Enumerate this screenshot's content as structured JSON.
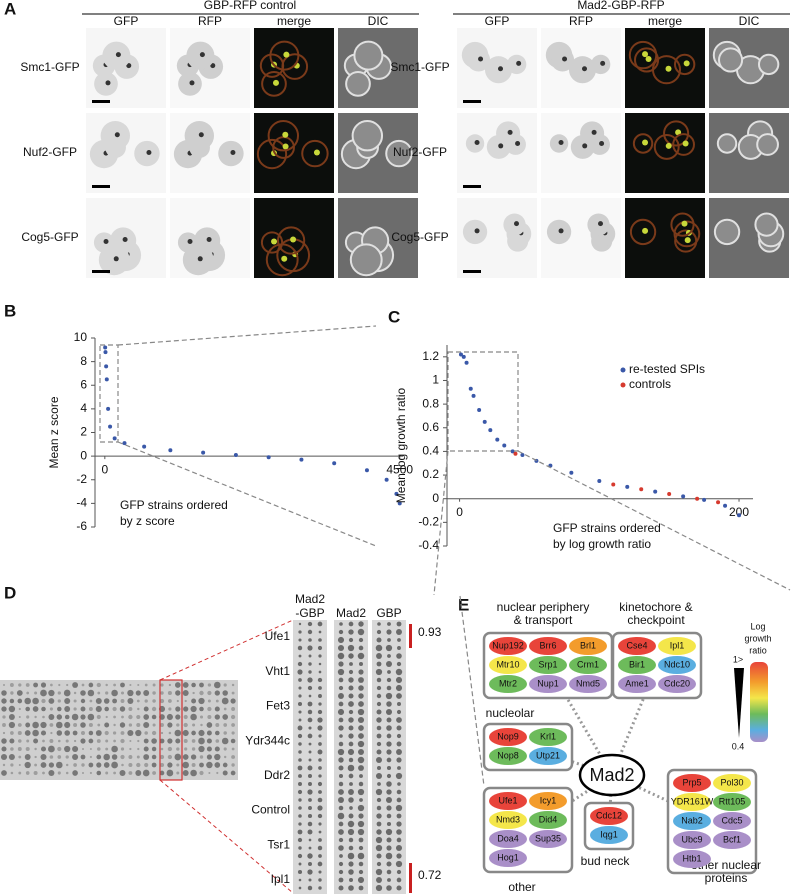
{
  "panel_a": {
    "label": "A",
    "blocks": [
      {
        "title": "GBP-RFP control",
        "columns": [
          "GFP",
          "RFP",
          "merge",
          "DIC"
        ]
      },
      {
        "title": "Mad2-GBP-RFP",
        "columns": [
          "GFP",
          "RFP",
          "merge",
          "DIC"
        ]
      }
    ],
    "rows": [
      "Smc1-GFP",
      "Nuf2-GFP",
      "Cog5-GFP"
    ]
  },
  "chart_data": [
    {
      "type": "scatter",
      "label": "B",
      "ylabel": "Mean z score",
      "xlabel": [
        "GFP strains ordered",
        "by z score"
      ],
      "x": [
        5,
        10,
        20,
        30,
        50,
        80,
        150,
        300,
        600,
        1000,
        1500,
        2000,
        2500,
        3000,
        3500,
        4000,
        4300,
        4450,
        4500
      ],
      "values": [
        9.2,
        8.8,
        7.6,
        6.5,
        4,
        2.5,
        1.5,
        1.1,
        0.8,
        0.5,
        0.3,
        0.1,
        -0.1,
        -0.3,
        -0.6,
        -1.2,
        -2,
        -3.2,
        -4
      ],
      "color": "#3a58a8",
      "xlim": [
        -150,
        4550
      ],
      "ylim": [
        -6,
        10
      ],
      "xticks": [
        0,
        4500
      ],
      "yticks": [
        -6,
        -4,
        -2,
        0,
        2,
        4,
        6,
        8,
        10
      ]
    },
    {
      "type": "scatter",
      "label": "C",
      "ylabel": "Mean log growth ratio",
      "xlabel": [
        "GFP strains ordered",
        "by log growth ratio"
      ],
      "series": [
        {
          "name": "re-tested SPIs",
          "color": "#3a58a8",
          "x": [
            1,
            3,
            5,
            8,
            10,
            14,
            18,
            22,
            27,
            32,
            38,
            45,
            55,
            65,
            80,
            100,
            120,
            140,
            160,
            175,
            190,
            200
          ],
          "values": [
            1.22,
            1.2,
            1.15,
            0.93,
            0.87,
            0.75,
            0.65,
            0.58,
            0.5,
            0.45,
            0.4,
            0.37,
            0.32,
            0.28,
            0.22,
            0.15,
            0.1,
            0.06,
            0.02,
            -0.01,
            -0.06,
            -0.14
          ]
        },
        {
          "name": "controls",
          "color": "#d63a2e",
          "x": [
            40,
            110,
            130,
            150,
            170,
            185
          ],
          "values": [
            0.38,
            0.12,
            0.08,
            0.04,
            0,
            -0.03
          ]
        }
      ],
      "xlim": [
        -9,
        210
      ],
      "ylim": [
        -0.4,
        1.3
      ],
      "xticks": [
        0,
        200
      ],
      "yticks": [
        {
          "value": -0.4,
          "label": "-0.4"
        },
        {
          "value": -0.2,
          "label": "-0.2"
        },
        0,
        {
          "value": 0.2,
          "label": "0.2"
        },
        {
          "value": 0.4,
          "label": "0.4"
        },
        {
          "value": 0.6,
          "label": "0.6"
        },
        {
          "value": 0.8,
          "label": "0.8"
        },
        1,
        {
          "value": 1.2,
          "label": "1.2"
        }
      ],
      "legend": "top-right"
    }
  ],
  "panel_d": {
    "label": "D",
    "columns": [
      [
        "Mad2",
        "-GBP"
      ],
      [
        "Mad2"
      ],
      [
        "GBP"
      ]
    ],
    "rows": [
      "Ufe1",
      "Vht1",
      "Fet3",
      "Ydr344c",
      "Ddr2",
      "Control",
      "Tsr1",
      "Ipl1"
    ],
    "top_value": 0.93,
    "bottom_value": 0.72
  },
  "panel_e": {
    "label": "E",
    "center": "Mad2",
    "legend": {
      "title": [
        "Log",
        "growth",
        "ratio"
      ],
      "high": "1>",
      "low": 0.4
    },
    "groups": [
      {
        "title": [
          "nuclear periphery",
          "& transport"
        ],
        "proteins": [
          {
            "name": "Nup192",
            "color": "#e8443a"
          },
          {
            "name": "Brr6",
            "color": "#e8443a"
          },
          {
            "name": "Brl1",
            "color": "#f39c2c"
          },
          {
            "name": "Mtr10",
            "color": "#f4e64a"
          },
          {
            "name": "Srp1",
            "color": "#6dbb5b"
          },
          {
            "name": "Crm1",
            "color": "#6dbb5b"
          },
          {
            "name": "Mtr2",
            "color": "#6dbb5b"
          },
          {
            "name": "Nup1",
            "color": "#a98fc8"
          },
          {
            "name": "Nmd5",
            "color": "#a98fc8"
          }
        ]
      },
      {
        "title": [
          "kinetochore &",
          "checkpoint"
        ],
        "proteins": [
          {
            "name": "Cse4",
            "color": "#e8443a"
          },
          {
            "name": "Ipl1",
            "color": "#f4e64a"
          },
          {
            "name": "Bir1",
            "color": "#6dbb5b"
          },
          {
            "name": "Ndc10",
            "color": "#5aaee0"
          },
          {
            "name": "Ame1",
            "color": "#a98fc8"
          },
          {
            "name": "Cdc20",
            "color": "#a98fc8"
          }
        ]
      },
      {
        "title": [
          "nucleolar"
        ],
        "proteins": [
          {
            "name": "Nop9",
            "color": "#e8443a"
          },
          {
            "name": "Krl1",
            "color": "#6dbb5b"
          },
          {
            "name": "Nop8",
            "color": "#6dbb5b"
          },
          {
            "name": "Utp21",
            "color": "#5aaee0"
          }
        ]
      },
      {
        "title": [
          "other"
        ],
        "proteins": [
          {
            "name": "Ufe1",
            "color": "#e8443a"
          },
          {
            "name": "Icy1",
            "color": "#f39c2c"
          },
          {
            "name": "Nmd3",
            "color": "#f4e64a"
          },
          {
            "name": "Did4",
            "color": "#6dbb5b"
          },
          {
            "name": "Doa4",
            "color": "#a98fc8"
          },
          {
            "name": "Sup35",
            "color": "#a98fc8"
          },
          {
            "name": "Hog1",
            "color": "#a98fc8"
          }
        ]
      },
      {
        "title": [
          "bud neck"
        ],
        "proteins": [
          {
            "name": "Cdc12",
            "color": "#e8443a"
          },
          {
            "name": "Iqg1",
            "color": "#5aaee0"
          }
        ]
      },
      {
        "title": [
          "other nuclear",
          "proteins"
        ],
        "proteins": [
          {
            "name": "Prp5",
            "color": "#e8443a"
          },
          {
            "name": "Pol30",
            "color": "#f4e64a"
          },
          {
            "name": "YDR161W",
            "color": "#f4e64a"
          },
          {
            "name": "Rtt105",
            "color": "#6dbb5b"
          },
          {
            "name": "Nab2",
            "color": "#5aaee0"
          },
          {
            "name": "Cdc5",
            "color": "#a98fc8"
          },
          {
            "name": "Ubc9",
            "color": "#a98fc8"
          },
          {
            "name": "Bcf1",
            "color": "#a98fc8"
          },
          {
            "name": "Htb1",
            "color": "#a98fc8"
          }
        ]
      }
    ]
  }
}
